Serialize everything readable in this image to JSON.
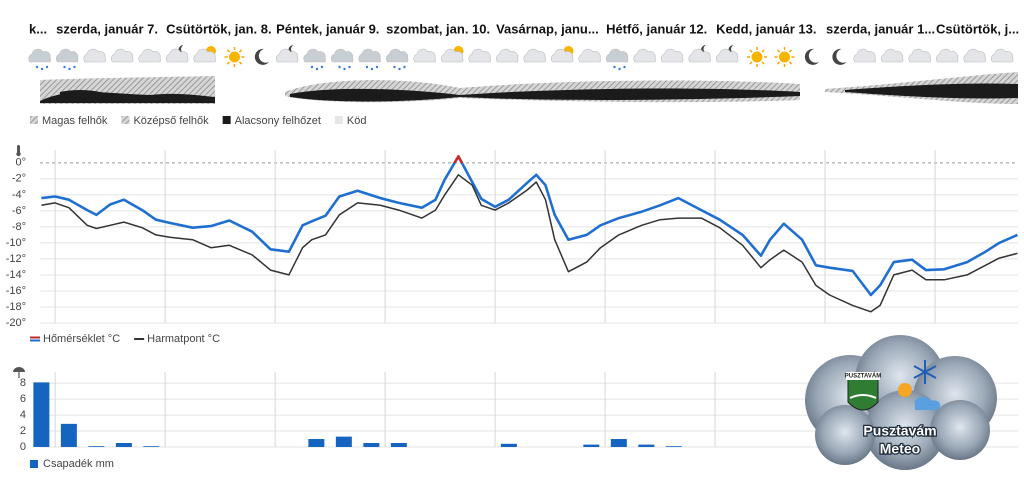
{
  "cloud_legend": [
    "Magas felhők",
    "Középső felhők",
    "Alacsony felhőzet",
    "Köd"
  ],
  "chart_data": [
    {
      "type": "line",
      "xlim": [
        -3.3,
        210.1
      ],
      "xticks": [
        {
          "value": -24,
          "label": "k..."
        },
        {
          "value": 0,
          "label": "szerda, január 7."
        },
        {
          "value": 24,
          "label": "Csütörtök, jan. 8."
        },
        {
          "value": 48,
          "label": "Péntek, január 9."
        },
        {
          "value": 72,
          "label": "szombat, jan. 10."
        },
        {
          "value": 96,
          "label": "Vasárnap, janu..."
        },
        {
          "value": 120,
          "label": "Hétfő, január 12."
        },
        {
          "value": 144,
          "label": "Kedd, január 13."
        },
        {
          "value": 168,
          "label": "szerda, január 1..."
        },
        {
          "value": 192,
          "label": "Csütörtök, j..."
        }
      ],
      "ylim": [
        -20,
        1.6
      ],
      "yticks": [
        {
          "value": 0,
          "label": "0°"
        },
        {
          "value": -2,
          "label": "-2°"
        },
        {
          "value": -4,
          "label": "-4°"
        },
        {
          "value": -6,
          "label": "-6°"
        },
        {
          "value": -8,
          "label": "-8°"
        },
        {
          "value": -10,
          "label": "-10°"
        },
        {
          "value": -12,
          "label": "-12°"
        },
        {
          "value": -14,
          "label": "-14°"
        },
        {
          "value": -16,
          "label": "-16°"
        },
        {
          "value": -18,
          "label": "-18°"
        },
        {
          "value": -20,
          "label": "-20°"
        }
      ],
      "grid": true,
      "legend": "bottom-left",
      "x": [
        -3,
        0,
        3,
        7,
        9,
        12,
        15,
        19,
        22,
        25,
        30,
        34,
        38,
        43,
        47,
        51,
        54,
        56,
        59,
        62,
        66,
        71,
        75,
        80,
        83,
        85,
        88,
        91,
        93,
        96,
        99,
        103,
        105,
        107,
        109,
        112,
        116,
        119,
        123,
        128,
        132,
        136,
        141,
        145,
        150,
        154,
        156,
        159,
        163,
        166,
        169,
        174,
        178,
        180,
        183,
        187,
        190,
        194,
        199,
        203,
        206,
        210
      ],
      "series": [
        {
          "name": "Hőmérséklet °C",
          "color": "#1f6fd1",
          "above_zero_color": "#c62828",
          "values": [
            -4.4,
            -4.2,
            -4.6,
            -5.9,
            -6.5,
            -5.2,
            -4.6,
            -5.9,
            -7.1,
            -7.5,
            -8.1,
            -7.9,
            -7.2,
            -8.6,
            -10.8,
            -11.1,
            -7.8,
            -7.3,
            -6.6,
            -4.2,
            -3.5,
            -4.4,
            -5.0,
            -5.6,
            -4.6,
            -2.1,
            0.8,
            -2.4,
            -4.5,
            -5.5,
            -4.6,
            -2.5,
            -1.5,
            -2.8,
            -6.5,
            -9.6,
            -9.0,
            -7.8,
            -6.9,
            -6.1,
            -5.3,
            -4.4,
            -5.9,
            -7.1,
            -9.0,
            -11.6,
            -9.6,
            -7.6,
            -9.6,
            -12.8,
            -13.1,
            -13.5,
            -16.5,
            -15.3,
            -12.4,
            -12.1,
            -13.4,
            -13.3,
            -12.4,
            -11.1,
            -10.0,
            -9.0
          ]
        },
        {
          "name": "Harmatpont °C",
          "color": "#333333",
          "values": [
            -5.3,
            -5.0,
            -5.6,
            -7.8,
            -8.2,
            -7.8,
            -7.4,
            -8.1,
            -9.0,
            -9.3,
            -9.6,
            -10.6,
            -10.3,
            -11.5,
            -13.4,
            -14.0,
            -10.6,
            -9.6,
            -9.0,
            -6.5,
            -5.0,
            -5.3,
            -5.9,
            -6.9,
            -5.9,
            -4.0,
            -1.5,
            -2.8,
            -5.3,
            -5.9,
            -5.0,
            -3.4,
            -2.4,
            -4.6,
            -9.6,
            -13.6,
            -12.4,
            -10.6,
            -9.0,
            -7.8,
            -7.1,
            -6.9,
            -6.9,
            -8.1,
            -10.3,
            -13.1,
            -12.1,
            -10.9,
            -12.4,
            -15.3,
            -16.5,
            -17.8,
            -18.6,
            -17.8,
            -14.0,
            -13.4,
            -14.6,
            -14.6,
            -14.0,
            -12.8,
            -11.9,
            -11.3
          ]
        }
      ]
    },
    {
      "type": "bar",
      "xlim": [
        -3.3,
        210.1
      ],
      "xticks": [
        0,
        24,
        48,
        72,
        96,
        120,
        144,
        168,
        192
      ],
      "ylim": [
        0,
        9.4
      ],
      "yticks": [
        0,
        2,
        4,
        6,
        8
      ],
      "grid": true,
      "legend": "bottom-left",
      "x": [
        -3,
        3,
        9,
        15,
        21,
        57,
        63,
        69,
        75,
        99,
        117,
        123,
        129,
        135
      ],
      "series": [
        {
          "name": "Csapadék mm",
          "color": "#1565c0",
          "values": [
            8.1,
            2.9,
            0.1,
            0.5,
            0.1,
            1.0,
            1.3,
            0.5,
            0.5,
            0.4,
            0.3,
            1.0,
            0.3,
            0.1
          ]
        }
      ]
    }
  ],
  "logo": {
    "badge": "PUSZTAVÁM",
    "line1": "Pusztavám",
    "line2": "Meteo"
  }
}
